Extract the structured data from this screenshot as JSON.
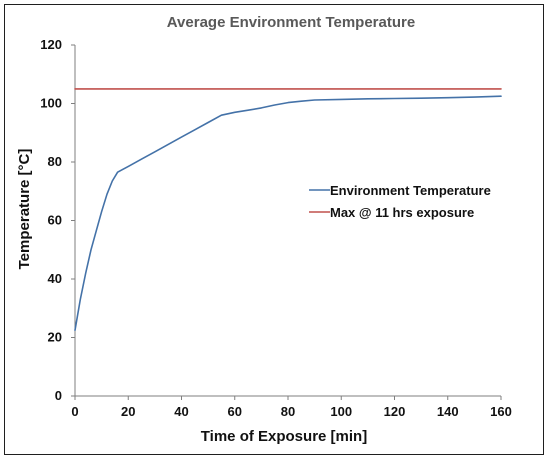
{
  "chart_data": {
    "type": "line",
    "title": "Average Environment Temperature",
    "xlabel": "Time of Exposure [min]",
    "ylabel": "Temperature [°C]",
    "xlim": [
      0,
      160
    ],
    "ylim": [
      0,
      120
    ],
    "x_ticks": [
      0,
      20,
      40,
      60,
      80,
      100,
      120,
      140,
      160
    ],
    "y_ticks": [
      0,
      20,
      40,
      60,
      80,
      100,
      120
    ],
    "grid": false,
    "legend_position": "right",
    "series": [
      {
        "name": "Environment Temperature",
        "color": "#4472a8",
        "x": [
          0,
          2,
          4,
          6,
          8,
          10,
          12,
          14,
          16,
          18,
          20,
          25,
          30,
          35,
          40,
          45,
          50,
          55,
          60,
          65,
          70,
          75,
          80,
          85,
          90,
          100,
          110,
          120,
          130,
          140,
          150,
          160
        ],
        "y": [
          22.5,
          33,
          42,
          50,
          56.5,
          63,
          69,
          73.5,
          76.5,
          77.5,
          78.5,
          81,
          83.5,
          86,
          88.5,
          91,
          93.5,
          96,
          97,
          97.7,
          98.5,
          99.5,
          100.3,
          100.8,
          101.2,
          101.4,
          101.6,
          101.7,
          101.8,
          102,
          102.2,
          102.5
        ]
      },
      {
        "name": "Max @ 11 hrs exposure",
        "color": "#c0504d",
        "x": [
          0,
          160
        ],
        "y": [
          105,
          105
        ]
      }
    ]
  }
}
